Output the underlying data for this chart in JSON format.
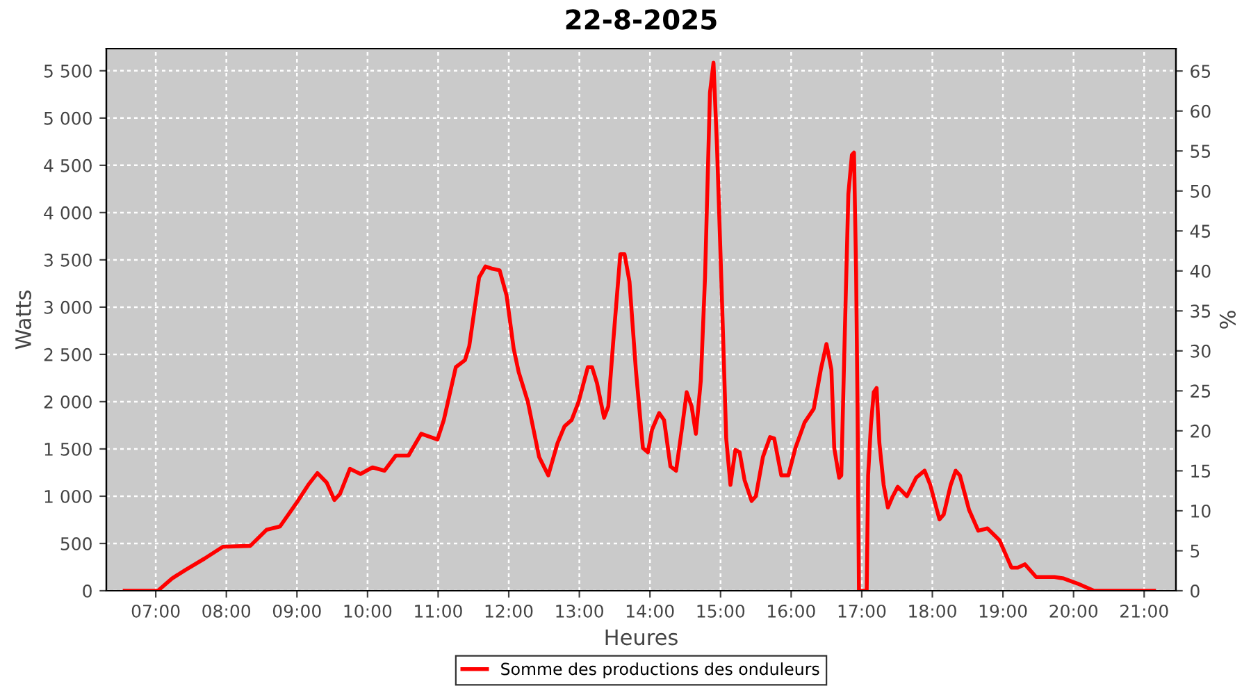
{
  "chart_data": {
    "type": "line",
    "title": "22-8-2025",
    "xlabel": "Heures",
    "ylabel": "Watts",
    "y2label": "%",
    "xlim": [
      6.3,
      21.45
    ],
    "xticks": [
      {
        "value": 7,
        "label": "07:00"
      },
      {
        "value": 8,
        "label": "08:00"
      },
      {
        "value": 9,
        "label": "09:00"
      },
      {
        "value": 10,
        "label": "10:00"
      },
      {
        "value": 11,
        "label": "11:00"
      },
      {
        "value": 12,
        "label": "12:00"
      },
      {
        "value": 13,
        "label": "13:00"
      },
      {
        "value": 14,
        "label": "14:00"
      },
      {
        "value": 15,
        "label": "15:00"
      },
      {
        "value": 16,
        "label": "16:00"
      },
      {
        "value": 17,
        "label": "17:00"
      },
      {
        "value": 18,
        "label": "18:00"
      },
      {
        "value": 19,
        "label": "19:00"
      },
      {
        "value": 20,
        "label": "20:00"
      },
      {
        "value": 21,
        "label": "21:00"
      }
    ],
    "ylim": [
      0,
      5734
    ],
    "yticks": [
      0,
      500,
      {
        "value": 1000,
        "label": "1 000"
      },
      {
        "value": 1500,
        "label": "1 500"
      },
      {
        "value": 2000,
        "label": "2 000"
      },
      {
        "value": 2500,
        "label": "2 500"
      },
      {
        "value": 3000,
        "label": "3 000"
      },
      {
        "value": 3500,
        "label": "3 500"
      },
      {
        "value": 4000,
        "label": "4 000"
      },
      {
        "value": 4500,
        "label": "4 500"
      },
      {
        "value": 5000,
        "label": "5 000"
      },
      {
        "value": 5500,
        "label": "5 500"
      }
    ],
    "y2lim": [
      0,
      67.8
    ],
    "y2ticks": [
      0,
      5,
      10,
      15,
      20,
      25,
      30,
      35,
      40,
      45,
      50,
      55,
      60,
      65
    ],
    "grid": true,
    "legend": "bottom",
    "marker": "none",
    "line_style": "solid",
    "series": [
      {
        "name": "Somme des productions des onduleurs",
        "color": "#ff0000",
        "x": [
          6.56,
          7.03,
          7.23,
          7.42,
          7.69,
          7.95,
          8.34,
          8.57,
          8.76,
          8.99,
          9.16,
          9.29,
          9.42,
          9.53,
          9.61,
          9.75,
          9.9,
          10.07,
          10.24,
          10.4,
          10.58,
          10.76,
          10.99,
          11.08,
          11.25,
          11.38,
          11.44,
          11.58,
          11.67,
          11.77,
          11.87,
          11.97,
          12.07,
          12.14,
          12.27,
          12.43,
          12.56,
          12.69,
          12.79,
          12.89,
          12.99,
          13.12,
          13.18,
          13.25,
          13.35,
          13.41,
          13.48,
          13.58,
          13.64,
          13.71,
          13.8,
          13.9,
          13.97,
          14.03,
          14.13,
          14.2,
          14.29,
          14.37,
          14.46,
          14.52,
          14.59,
          14.65,
          14.72,
          14.78,
          14.85,
          14.9,
          14.95,
          15.01,
          15.08,
          15.14,
          15.21,
          15.27,
          15.34,
          15.44,
          15.5,
          15.6,
          15.7,
          15.76,
          15.86,
          15.96,
          16.06,
          16.19,
          16.32,
          16.42,
          16.5,
          16.57,
          16.61,
          16.68,
          16.71,
          16.76,
          16.81,
          16.86,
          16.89,
          16.92,
          16.94,
          16.96,
          17.07,
          17.09,
          17.13,
          17.17,
          17.21,
          17.25,
          17.31,
          17.37,
          17.44,
          17.51,
          17.64,
          17.77,
          17.89,
          17.97,
          18.1,
          18.16,
          18.26,
          18.33,
          18.39,
          18.52,
          18.65,
          18.78,
          18.95,
          19.12,
          19.21,
          19.31,
          19.47,
          19.73,
          19.86,
          20.06,
          20.29,
          21.14
        ],
        "values": [
          0,
          0,
          130,
          220,
          340,
          465,
          475,
          645,
          680,
          925,
          1120,
          1245,
          1145,
          960,
          1025,
          1290,
          1235,
          1305,
          1270,
          1430,
          1430,
          1660,
          1600,
          1805,
          2365,
          2440,
          2585,
          3315,
          3430,
          3405,
          3390,
          3120,
          2560,
          2315,
          2000,
          1415,
          1220,
          1560,
          1740,
          1805,
          2000,
          2365,
          2365,
          2195,
          1830,
          1950,
          2635,
          3560,
          3560,
          3270,
          2340,
          1510,
          1465,
          1705,
          1880,
          1805,
          1315,
          1270,
          1755,
          2100,
          1950,
          1660,
          2220,
          3315,
          5270,
          5585,
          4685,
          3315,
          1610,
          1120,
          1490,
          1465,
          1170,
          950,
          1000,
          1415,
          1625,
          1610,
          1220,
          1220,
          1510,
          1780,
          1925,
          2340,
          2610,
          2340,
          1510,
          1195,
          1220,
          2730,
          4195,
          4610,
          4635,
          3365,
          1950,
          0,
          0,
          1220,
          1755,
          2100,
          2145,
          1560,
          1120,
          880,
          1000,
          1100,
          1000,
          1195,
          1270,
          1120,
          755,
          805,
          1120,
          1270,
          1220,
          855,
          635,
          660,
          535,
          245,
          245,
          280,
          145,
          145,
          130,
          75,
          0,
          0
        ]
      }
    ]
  }
}
